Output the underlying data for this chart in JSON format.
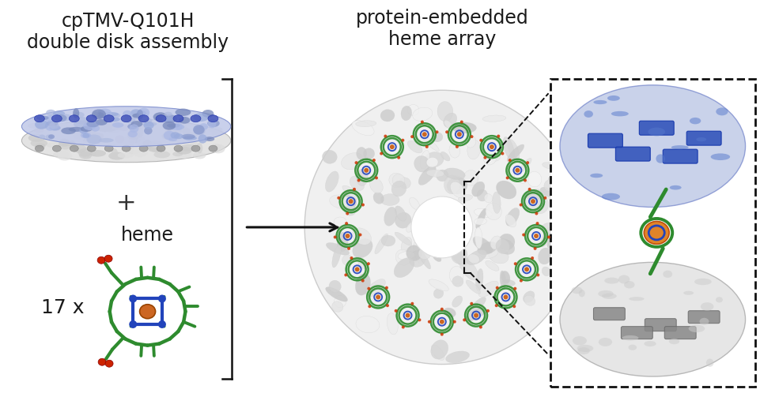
{
  "background_color": "#ffffff",
  "title_left_line1": "cpTMV-Q101H",
  "title_left_line2": "double disk assembly",
  "title_center_line1": "protein-embedded",
  "title_center_line2": "heme array",
  "label_heme": "heme",
  "label_17x": "17 x",
  "title_fontsize": 17,
  "label_fontsize": 17,
  "arrow_color": "#111111",
  "bracket_color": "#111111",
  "heme_green": "#2e8b2e",
  "heme_blue": "#2244bb",
  "heme_orange": "#cc6622",
  "heme_red": "#cc2200",
  "disk_top_blue": "#aab4e0",
  "disk_top_dark": "#5566cc",
  "disk_bot_gray": "#d0d0d0",
  "disk_bot_dark": "#888888",
  "ring_surface": "#e8e8e8",
  "ring_edge": "#cccccc",
  "zoom_blue_fill": "#9aaedd",
  "zoom_blue_dark": "#4466bb",
  "zoom_gray_fill": "#d5d5d5",
  "zoom_gray_dark": "#888888",
  "zoom_orange": "#dd7711",
  "zoom_green": "#2e8b2e"
}
